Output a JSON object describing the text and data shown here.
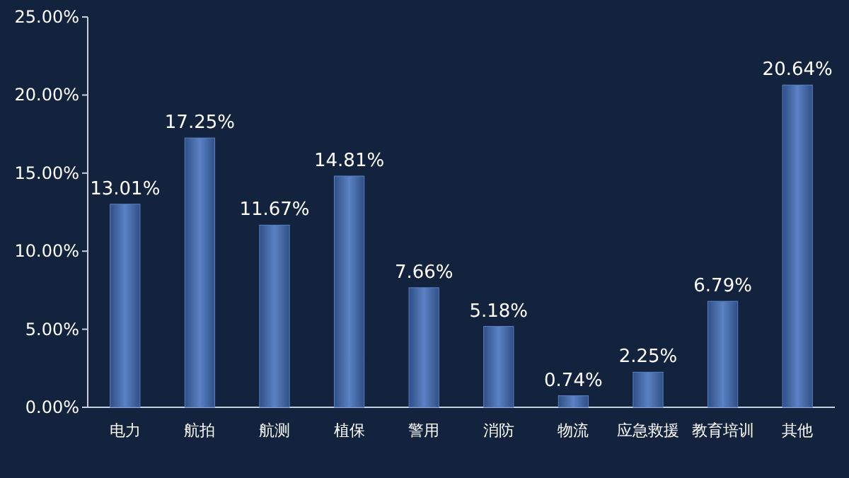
{
  "chart_data": {
    "type": "bar",
    "categories": [
      "电力",
      "航拍",
      "航测",
      "植保",
      "警用",
      "消防",
      "物流",
      "应急救援",
      "教育培训",
      "其他"
    ],
    "values": [
      13.01,
      17.25,
      11.67,
      14.81,
      7.66,
      5.18,
      0.74,
      2.25,
      6.79,
      20.64
    ],
    "value_labels": [
      "13.01%",
      "17.25%",
      "11.67%",
      "14.81%",
      "7.66%",
      "5.18%",
      "0.74%",
      "2.25%",
      "6.79%",
      "20.64%"
    ],
    "color": "#5b82c4",
    "ylim": [
      0,
      25
    ],
    "yticks": [
      {
        "value": 0,
        "label": "0.00%"
      },
      {
        "value": 5,
        "label": "5.00%"
      },
      {
        "value": 10,
        "label": "10.00%"
      },
      {
        "value": 15,
        "label": "15.00%"
      },
      {
        "value": 20,
        "label": "20.00%"
      },
      {
        "value": 25,
        "label": "25.00%"
      }
    ],
    "grid": false
  }
}
